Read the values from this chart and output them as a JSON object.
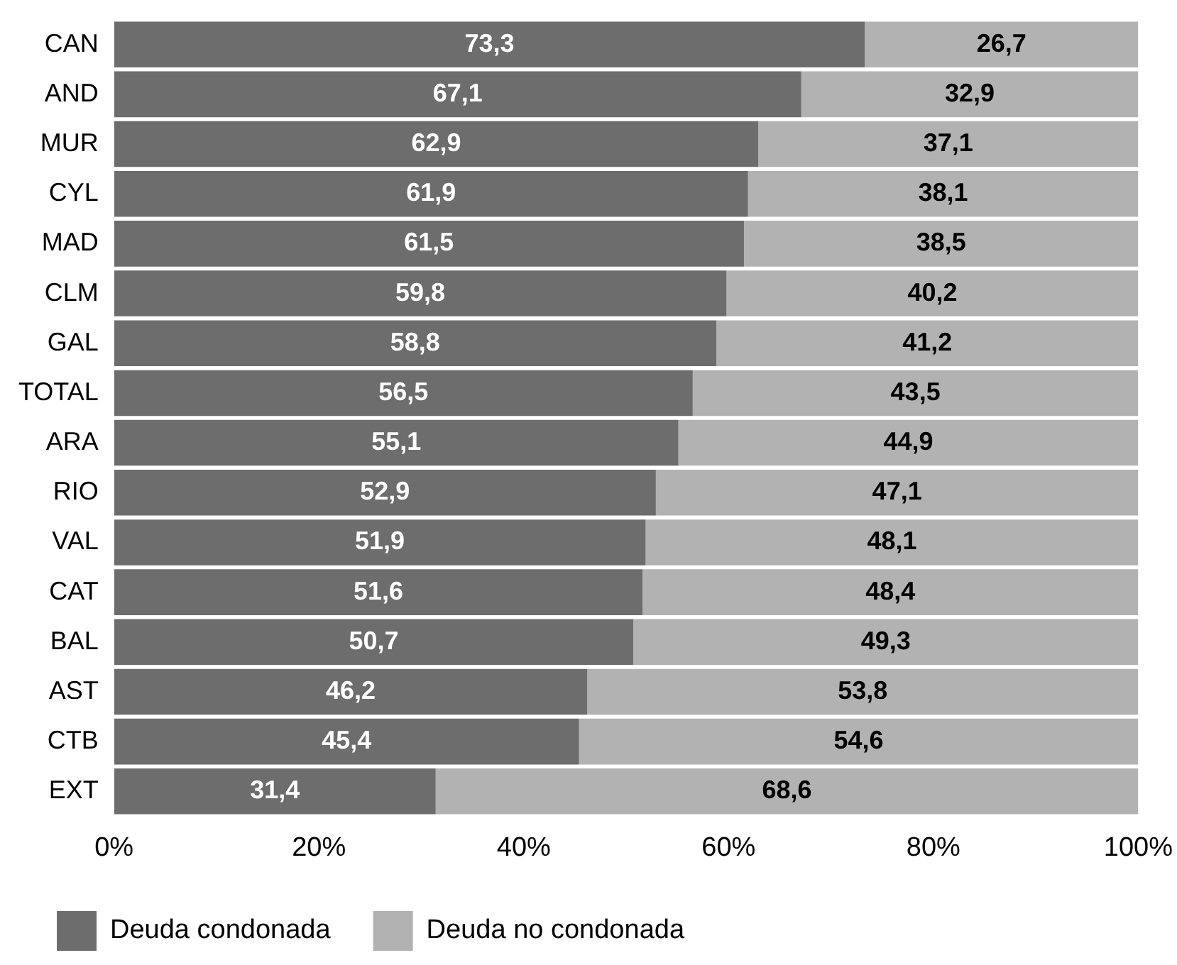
{
  "chart_data": {
    "type": "bar",
    "orientation": "horizontal",
    "stacked": true,
    "categories": [
      "CAN",
      "AND",
      "MUR",
      "CYL",
      "MAD",
      "CLM",
      "GAL",
      "TOTAL",
      "ARA",
      "RIO",
      "VAL",
      "CAT",
      "BAL",
      "AST",
      "CTB",
      "EXT"
    ],
    "series": [
      {
        "name": "Deuda condonada",
        "color": "#6d6d6d",
        "values": [
          73.3,
          67.1,
          62.9,
          61.9,
          61.5,
          59.8,
          58.8,
          56.5,
          55.1,
          52.9,
          51.9,
          51.6,
          50.7,
          46.2,
          45.4,
          31.4
        ],
        "value_labels": [
          "73,3",
          "67,1",
          "62,9",
          "61,9",
          "61,5",
          "59,8",
          "58,8",
          "56,5",
          "55,1",
          "52,9",
          "51,9",
          "51,6",
          "50,7",
          "46,2",
          "45,4",
          "31,4"
        ]
      },
      {
        "name": "Deuda no condonada",
        "color": "#b2b2b2",
        "values": [
          26.7,
          32.9,
          37.1,
          38.1,
          38.5,
          40.2,
          41.2,
          43.5,
          44.9,
          47.1,
          48.1,
          48.4,
          49.3,
          53.8,
          54.6,
          68.6
        ],
        "value_labels": [
          "26,7",
          "32,9",
          "37,1",
          "38,1",
          "38,5",
          "40,2",
          "41,2",
          "43,5",
          "44,9",
          "47,1",
          "48,1",
          "48,4",
          "49,3",
          "53,8",
          "54,6",
          "68,6"
        ]
      }
    ],
    "xlim": [
      0,
      100
    ],
    "xticks": [
      {
        "value": 0,
        "label": "0%"
      },
      {
        "value": 20,
        "label": "20%"
      },
      {
        "value": 40,
        "label": "40%"
      },
      {
        "value": 60,
        "label": "60%"
      },
      {
        "value": 80,
        "label": "80%"
      },
      {
        "value": 100,
        "label": "100%"
      }
    ],
    "grid": false,
    "legend": "bottom left"
  }
}
